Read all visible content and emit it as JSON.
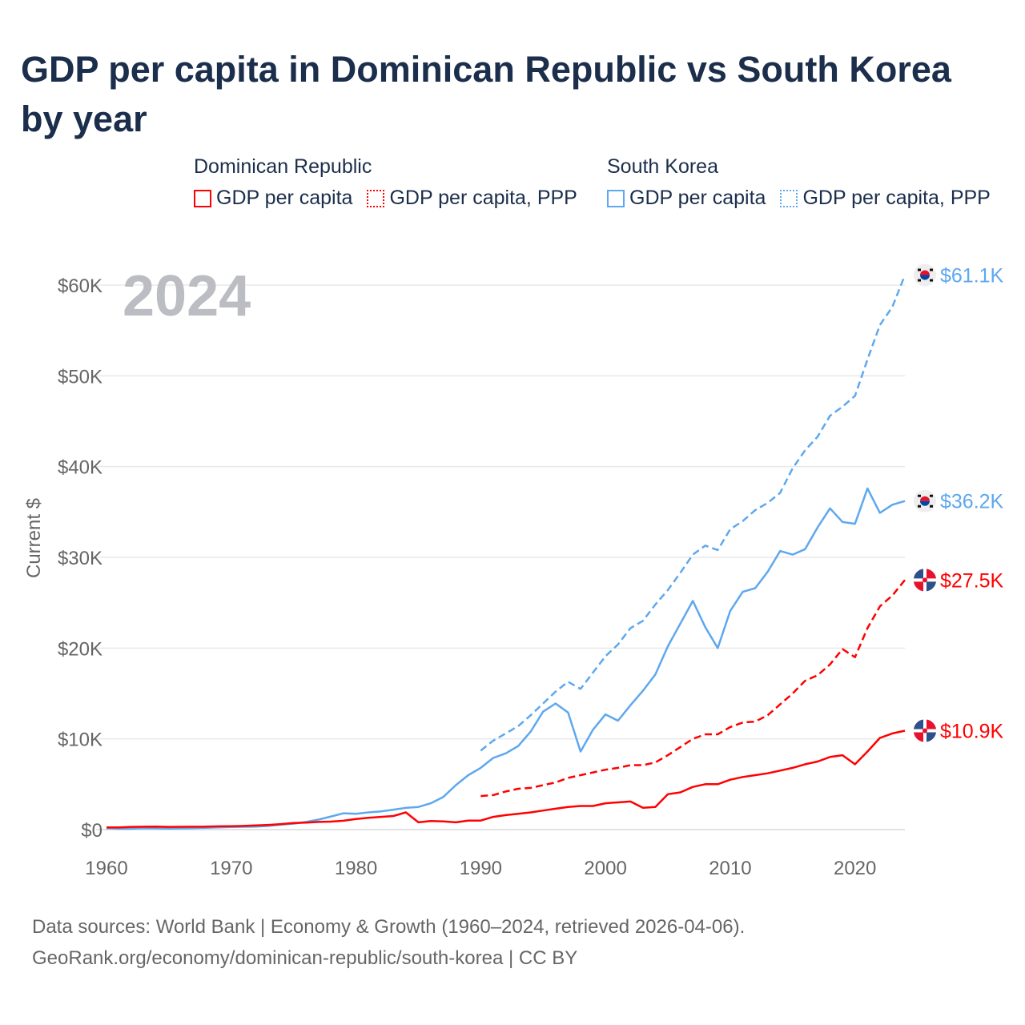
{
  "title": "GDP per capita in Dominican Republic vs South Korea by year",
  "legend": [
    {
      "group": "Dominican Republic",
      "items": [
        {
          "label": "GDP per capita",
          "color": "#ff0000",
          "style": "solid"
        },
        {
          "label": "GDP per capita, PPP",
          "color": "#ff0000",
          "style": "dotted"
        }
      ]
    },
    {
      "group": "South Korea",
      "items": [
        {
          "label": "GDP per capita",
          "color": "#5ea8ee",
          "style": "solid"
        },
        {
          "label": "GDP per capita, PPP",
          "color": "#5ea8ee",
          "style": "dotted"
        }
      ]
    }
  ],
  "footer": {
    "line1": "Data sources: World Bank | Economy & Growth (1960–2024, retrieved 2026-04-06).",
    "line2": "GeoRank.org/economy/dominican-republic/south-korea | CC BY"
  },
  "chart_data": {
    "type": "line",
    "title": "GDP per capita in Dominican Republic vs South Korea by year",
    "year_label": "2024",
    "xlabel": "",
    "ylabel": "Current $",
    "xlim": [
      1960,
      2024
    ],
    "ylim": [
      0,
      60000
    ],
    "xticks": [
      1960,
      1970,
      1980,
      1990,
      2000,
      2010,
      2020
    ],
    "yticks": [
      0,
      10000,
      20000,
      30000,
      40000,
      50000,
      60000
    ],
    "ytick_labels": [
      "$0",
      "$10K",
      "$20K",
      "$30K",
      "$40K",
      "$50K",
      "$60K"
    ],
    "grid": true,
    "series": [
      {
        "name": "South Korea GDP per capita, PPP",
        "country": "South Korea",
        "color": "#5ea8ee",
        "dashed": true,
        "end_label": "$61.1K",
        "flag": "kr",
        "start": 1990,
        "values": [
          8.7,
          9.8,
          10.6,
          11.4,
          12.6,
          13.9,
          15.2,
          16.3,
          15.5,
          17.3,
          19.1,
          20.4,
          22.2,
          23.0,
          24.8,
          26.4,
          28.3,
          30.3,
          31.3,
          30.8,
          33.1,
          34.0,
          35.2,
          36.0,
          37.1,
          39.8,
          41.8,
          43.3,
          45.6,
          46.6,
          47.8,
          51.8,
          55.6,
          57.6,
          61.1
        ]
      },
      {
        "name": "South Korea GDP per capita",
        "country": "South Korea",
        "color": "#5ea8ee",
        "dashed": false,
        "end_label": "$36.2K",
        "flag": "kr",
        "start": 1960,
        "values": [
          0.16,
          0.09,
          0.1,
          0.15,
          0.13,
          0.11,
          0.13,
          0.16,
          0.2,
          0.24,
          0.28,
          0.31,
          0.33,
          0.41,
          0.56,
          0.65,
          0.85,
          1.1,
          1.45,
          1.8,
          1.75,
          1.9,
          2.0,
          2.2,
          2.4,
          2.5,
          2.9,
          3.6,
          4.9,
          6.0,
          6.8,
          7.9,
          8.4,
          9.2,
          10.8,
          13.0,
          13.9,
          12.9,
          8.6,
          11.0,
          12.7,
          12.0,
          13.7,
          15.3,
          17.1,
          20.2,
          22.7,
          25.2,
          22.3,
          20.0,
          24.1,
          26.2,
          26.6,
          28.4,
          30.7,
          30.3,
          30.9,
          33.3,
          35.4,
          33.9,
          33.7,
          37.6,
          34.9,
          35.8,
          36.2
        ]
      },
      {
        "name": "Dominican Republic GDP per capita, PPP",
        "country": "Dominican Republic",
        "color": "#ff0000",
        "dashed": true,
        "end_label": "$27.5K",
        "flag": "do",
        "start": 1990,
        "values": [
          3.7,
          3.8,
          4.2,
          4.5,
          4.6,
          4.9,
          5.2,
          5.7,
          6.0,
          6.3,
          6.6,
          6.8,
          7.1,
          7.1,
          7.4,
          8.2,
          9.1,
          10.0,
          10.5,
          10.5,
          11.3,
          11.8,
          11.9,
          12.6,
          13.8,
          15.0,
          16.4,
          17.0,
          18.2,
          19.9,
          19.0,
          22.2,
          24.6,
          25.8,
          27.5
        ]
      },
      {
        "name": "Dominican Republic GDP per capita",
        "country": "Dominican Republic",
        "color": "#ff0000",
        "dashed": false,
        "end_label": "$10.9K",
        "flag": "do",
        "start": 1960,
        "values": [
          0.25,
          0.25,
          0.3,
          0.32,
          0.33,
          0.3,
          0.31,
          0.32,
          0.33,
          0.36,
          0.38,
          0.41,
          0.46,
          0.52,
          0.61,
          0.72,
          0.77,
          0.85,
          0.88,
          0.98,
          1.17,
          1.3,
          1.4,
          1.5,
          1.9,
          0.8,
          0.95,
          0.9,
          0.8,
          1.0,
          1.0,
          1.4,
          1.6,
          1.75,
          1.9,
          2.1,
          2.3,
          2.5,
          2.6,
          2.6,
          2.9,
          3.0,
          3.1,
          2.4,
          2.5,
          3.9,
          4.1,
          4.7,
          5.0,
          5.0,
          5.5,
          5.8,
          6.0,
          6.2,
          6.5,
          6.8,
          7.2,
          7.5,
          8.0,
          8.2,
          7.2,
          8.6,
          10.1,
          10.6,
          10.9
        ]
      }
    ],
    "value_unit": "thousand USD"
  }
}
